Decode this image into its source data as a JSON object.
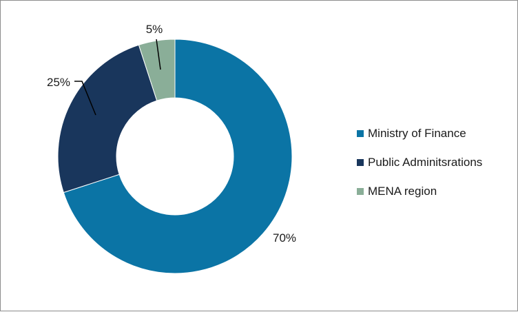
{
  "chart_data": {
    "type": "pie",
    "title": "",
    "donut": true,
    "categories": [
      "Ministry of Finance",
      "Public Adminitsrations",
      "MENA region"
    ],
    "values": [
      70,
      25,
      5
    ],
    "labels": [
      "70%",
      "25%",
      "5%"
    ],
    "colors": [
      "#0b74a5",
      "#19365c",
      "#8aae98"
    ],
    "legend_position": "right"
  }
}
